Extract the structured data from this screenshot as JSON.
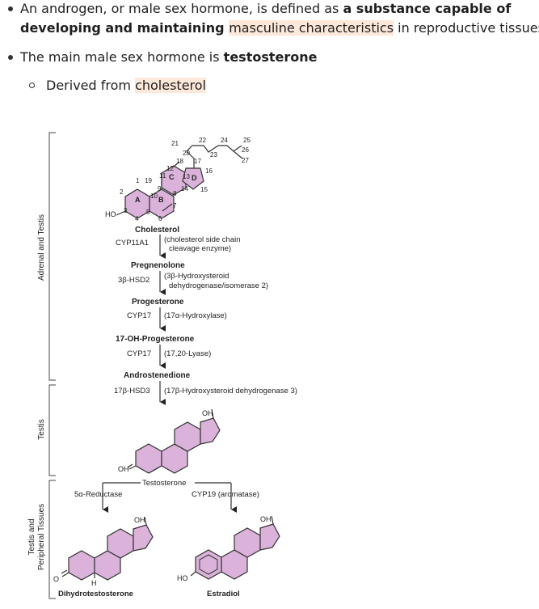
{
  "bullets": [
    {
      "parts": [
        {
          "text": "An androgen, or male sex hormone, is defined as ",
          "style": "plain"
        },
        {
          "text": "a substance capable of",
          "style": "bold"
        }
      ],
      "line2": [
        {
          "text": "developing and maintaining ",
          "style": "bold"
        },
        {
          "text": "masculine characteristics",
          "style": "highlight"
        },
        {
          "text": " in reproductive tissues",
          "style": "plain"
        }
      ]
    },
    {
      "parts": [
        {
          "text": "The main male sex hormone is ",
          "style": "plain"
        },
        {
          "text": "testosterone",
          "style": "bold"
        }
      ]
    }
  ],
  "sub_bullet": [
    {
      "text": "Derived from ",
      "style": "plain"
    },
    {
      "text": "cholesterol",
      "style": "highlight"
    }
  ],
  "figure": {
    "side_labels": {
      "adrenal_testis": "Adrenal and Testis",
      "testis": "Testis",
      "peripheral_line1": "Testis and",
      "peripheral_line2": "Peripheral Tissues"
    },
    "ring_letters": {
      "a": "A",
      "b": "B",
      "c": "C",
      "d": "D"
    },
    "atom_numbers": {
      "n1": "1",
      "n2": "2",
      "n3": "3",
      "n4": "4",
      "n5": "5",
      "n6": "6",
      "n7": "7",
      "n8": "8",
      "n9": "9",
      "n10": "10",
      "n11": "11",
      "n12": "12",
      "n13": "13",
      "n14": "14",
      "n15": "15",
      "n16": "16",
      "n17": "17",
      "n18": "18",
      "n19": "19",
      "n20": "20",
      "n21": "21",
      "n22": "22",
      "n23": "23",
      "n24": "24",
      "n25": "25",
      "n26": "26",
      "n27": "27"
    },
    "groups": {
      "ho": "HO",
      "oh": "OH",
      "o": "O",
      "h": "H"
    },
    "steps": {
      "cholesterol": "Cholesterol",
      "cyp11a1": "CYP11A1",
      "cyp11a1_desc1": "(cholesterol side chain",
      "cyp11a1_desc2": "cleavage enzyme)",
      "pregnenolone": "Pregnenolone",
      "hsd2": "3β-HSD2",
      "hsd2_desc1": "(3β-Hydroxysteroid",
      "hsd2_desc2": "dehydrogenase/isomerase 2)",
      "progesterone": "Progesterone",
      "cyp17a": "CYP17",
      "cyp17a_desc": "(17α-Hydroxylase)",
      "ohprog": "17-OH-Progesterone",
      "cyp17b": "CYP17",
      "cyp17b_desc": "(17,20-Lyase)",
      "androstenedione": "Androstenedione",
      "hsd3": "17β-HSD3",
      "hsd3_desc": "(17β-Hydroxysteroid dehydrogenase 3)",
      "testosterone": "Testosterone",
      "reductase": "5α-Reductase",
      "aromatase": "CYP19 (aromatase)",
      "dht": "Dihydrotestosterone",
      "estradiol": "Estradiol"
    }
  }
}
